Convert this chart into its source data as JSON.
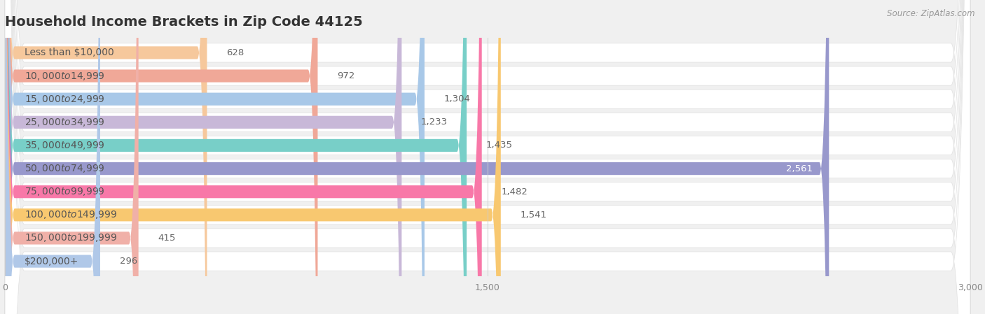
{
  "title": "Household Income Brackets in Zip Code 44125",
  "source": "Source: ZipAtlas.com",
  "categories": [
    "Less than $10,000",
    "$10,000 to $14,999",
    "$15,000 to $24,999",
    "$25,000 to $34,999",
    "$35,000 to $49,999",
    "$50,000 to $74,999",
    "$75,000 to $99,999",
    "$100,000 to $149,999",
    "$150,000 to $199,999",
    "$200,000+"
  ],
  "values": [
    628,
    972,
    1304,
    1233,
    1435,
    2561,
    1482,
    1541,
    415,
    296
  ],
  "bar_colors": [
    "#f6c89c",
    "#f0a898",
    "#a8c8e8",
    "#c8b8d8",
    "#78cfc8",
    "#9898cc",
    "#f878a8",
    "#f8c870",
    "#f0b0a8",
    "#b0c8e8"
  ],
  "xlim": [
    0,
    3000
  ],
  "xticks": [
    0,
    1500,
    3000
  ],
  "background_color": "#f0f0f0",
  "row_bg_color": "#ffffff",
  "label_color": "#555555",
  "title_color": "#333333",
  "source_color": "#999999",
  "value_color_inside": "#ffffff",
  "value_color_outside": "#666666",
  "title_fontsize": 14,
  "label_fontsize": 10,
  "value_fontsize": 9.5,
  "tick_fontsize": 9,
  "inside_threshold": 2200
}
